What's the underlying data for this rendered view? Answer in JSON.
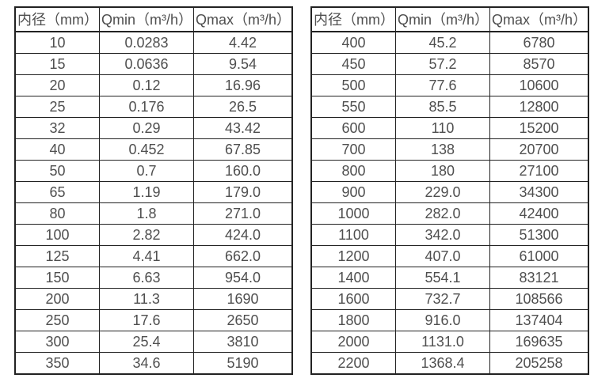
{
  "page": {
    "description_colors": {
      "background": "#ffffff",
      "border": "#222222",
      "text": "#4f4f4f"
    }
  },
  "chart_data": [
    {
      "type": "table",
      "headers": [
        "内径（mm）",
        "Qmin（m³/h）",
        "Qmax（m³/h）"
      ],
      "rows": [
        [
          "10",
          "0.0283",
          "4.42"
        ],
        [
          "15",
          "0.0636",
          "9.54"
        ],
        [
          "20",
          "0.12",
          "16.96"
        ],
        [
          "25",
          "0.176",
          "26.5"
        ],
        [
          "32",
          "0.29",
          "43.42"
        ],
        [
          "40",
          "0.452",
          "67.85"
        ],
        [
          "50",
          "0.7",
          "160.0"
        ],
        [
          "65",
          "1.19",
          "179.0"
        ],
        [
          "80",
          "1.8",
          "271.0"
        ],
        [
          "100",
          "2.82",
          "424.0"
        ],
        [
          "125",
          "4.41",
          "662.0"
        ],
        [
          "150",
          "6.63",
          "954.0"
        ],
        [
          "200",
          "11.3",
          "1690"
        ],
        [
          "250",
          "17.6",
          "2650"
        ],
        [
          "300",
          "25.4",
          "3810"
        ],
        [
          "350",
          "34.6",
          "5190"
        ]
      ]
    },
    {
      "type": "table",
      "headers": [
        "内径（mm）",
        "Qmin（m³/h）",
        "Qmax（m³/h）"
      ],
      "rows": [
        [
          "400",
          "45.2",
          "6780"
        ],
        [
          "450",
          "57.2",
          "8570"
        ],
        [
          "500",
          "77.6",
          "10600"
        ],
        [
          "550",
          "85.5",
          "12800"
        ],
        [
          "600",
          "110",
          "15200"
        ],
        [
          "700",
          "138",
          "20700"
        ],
        [
          "800",
          "180",
          "27100"
        ],
        [
          "900",
          "229.0",
          "34300"
        ],
        [
          "1000",
          "282.0",
          "42400"
        ],
        [
          "1100",
          "342.0",
          "51300"
        ],
        [
          "1200",
          "407.0",
          "61000"
        ],
        [
          "1400",
          "554.1",
          "83121"
        ],
        [
          "1600",
          "732.7",
          "108566"
        ],
        [
          "1800",
          "916.0",
          "137404"
        ],
        [
          "2000",
          "1131.0",
          "169635"
        ],
        [
          "2200",
          "1368.4",
          "205258"
        ]
      ]
    }
  ]
}
